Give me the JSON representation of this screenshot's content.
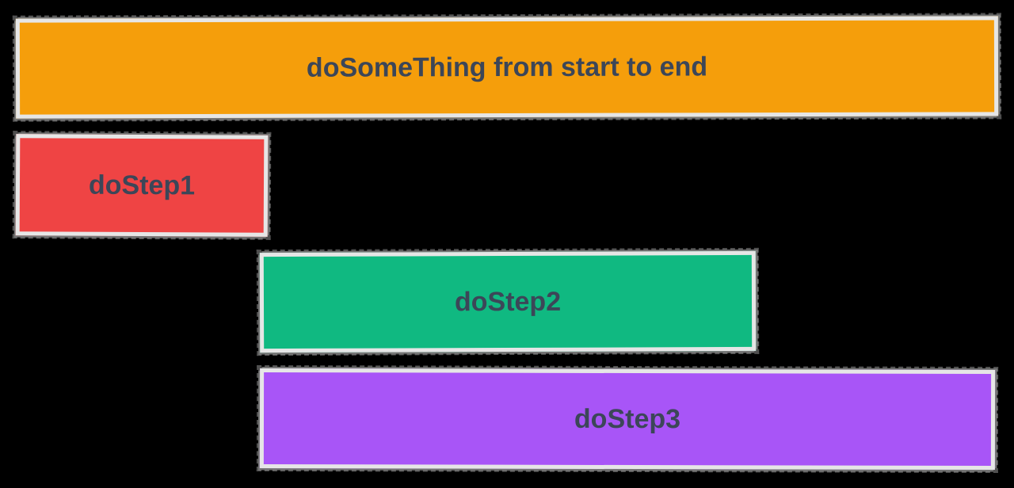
{
  "diagram": {
    "bars": [
      {
        "label": "doSomeThing from start to end",
        "color": "#f59e0b"
      },
      {
        "label": "doStep1",
        "color": "#ef4444"
      },
      {
        "label": "doStep2",
        "color": "#10b981"
      },
      {
        "label": "doStep3",
        "color": "#a855f7"
      }
    ],
    "text_color": "#3c4658",
    "border_color": "#e6e6e6",
    "background": "#000000"
  }
}
